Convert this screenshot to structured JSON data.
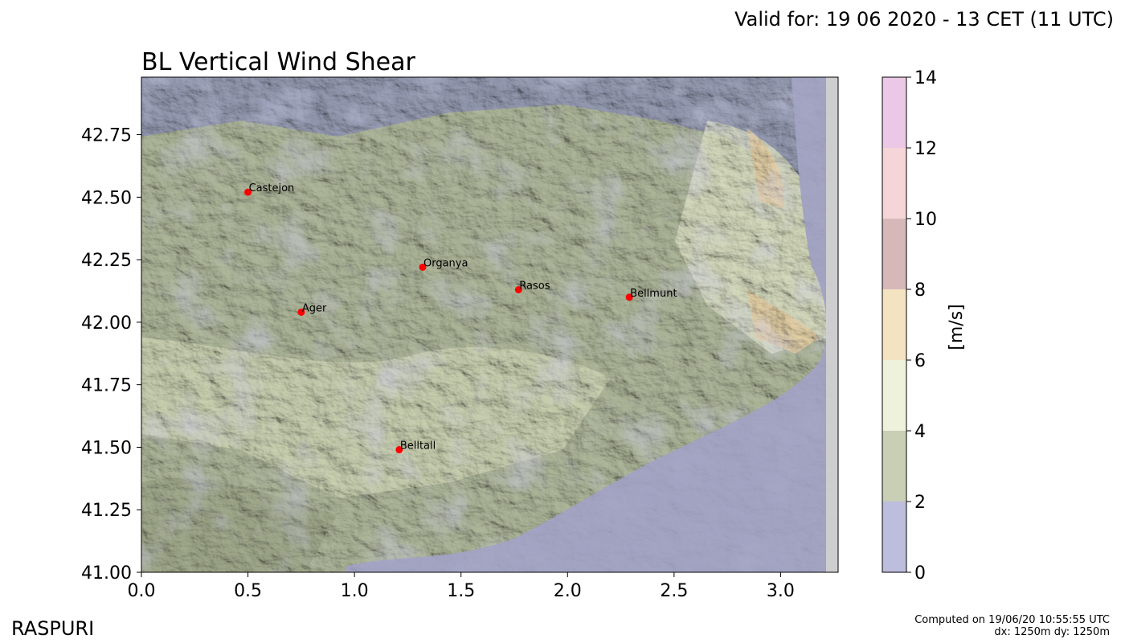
{
  "valid_text": "Valid for: 19 06 2020 - 13 CET (11 UTC)",
  "title": "BL Vertical Wind Shear",
  "brand": "RASPURI",
  "computed_line1": "Computed on 19/06/20 10:55:55 UTC",
  "computed_line2": "dx: 1250m dy: 1250m",
  "colorbar": {
    "unit_label": "[m/s]",
    "levels": [
      0,
      2,
      4,
      6,
      8,
      10,
      12,
      14
    ],
    "colors": [
      "#bdbddd",
      "#c8cfb5",
      "#eef1dc",
      "#f4e3c1",
      "#d6b8b8",
      "#f6d5d9",
      "#ebc8e6"
    ]
  },
  "map": {
    "xlim": [
      0.0,
      3.27
    ],
    "ylim": [
      41.0,
      42.98
    ],
    "xticks": [
      "0.0",
      "0.5",
      "1.0",
      "1.5",
      "2.0",
      "2.5",
      "3.0"
    ],
    "yticks": [
      "41.00",
      "41.25",
      "41.50",
      "41.75",
      "42.00",
      "42.25",
      "42.50",
      "42.75"
    ],
    "places": [
      {
        "name": "Castejon",
        "x": 0.5,
        "y": 42.52
      },
      {
        "name": "Organya",
        "x": 1.32,
        "y": 42.22
      },
      {
        "name": "Rasos",
        "x": 1.77,
        "y": 42.13
      },
      {
        "name": "Bellmunt",
        "x": 2.29,
        "y": 42.1
      },
      {
        "name": "Ager",
        "x": 0.75,
        "y": 42.04
      },
      {
        "name": "Belltall",
        "x": 1.21,
        "y": 41.49
      }
    ]
  }
}
